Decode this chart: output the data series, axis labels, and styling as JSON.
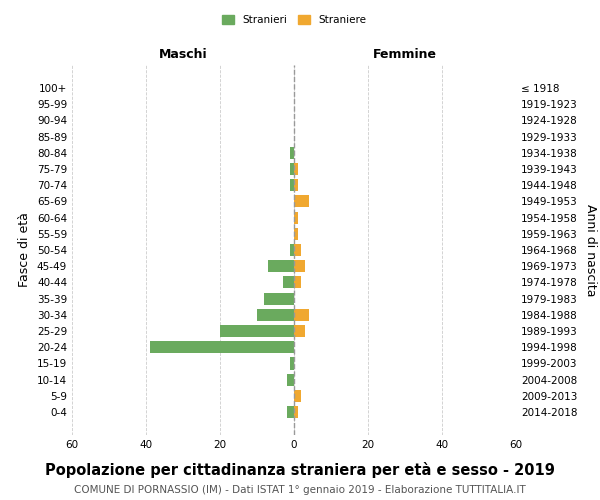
{
  "age_groups": [
    "100+",
    "95-99",
    "90-94",
    "85-89",
    "80-84",
    "75-79",
    "70-74",
    "65-69",
    "60-64",
    "55-59",
    "50-54",
    "45-49",
    "40-44",
    "35-39",
    "30-34",
    "25-29",
    "20-24",
    "15-19",
    "10-14",
    "5-9",
    "0-4"
  ],
  "birth_years": [
    "≤ 1918",
    "1919-1923",
    "1924-1928",
    "1929-1933",
    "1934-1938",
    "1939-1943",
    "1944-1948",
    "1949-1953",
    "1954-1958",
    "1959-1963",
    "1964-1968",
    "1969-1973",
    "1974-1978",
    "1979-1983",
    "1984-1988",
    "1989-1993",
    "1994-1998",
    "1999-2003",
    "2004-2008",
    "2009-2013",
    "2014-2018"
  ],
  "maschi": [
    0,
    0,
    0,
    0,
    1,
    1,
    1,
    0,
    0,
    0,
    1,
    7,
    3,
    8,
    10,
    20,
    39,
    1,
    2,
    0,
    2
  ],
  "femmine": [
    0,
    0,
    0,
    0,
    0,
    1,
    1,
    4,
    1,
    1,
    2,
    3,
    2,
    0,
    4,
    3,
    0,
    0,
    0,
    2,
    1
  ],
  "maschi_color": "#6aaa5e",
  "femmine_color": "#f0a830",
  "title": "Popolazione per cittadinanza straniera per età e sesso - 2019",
  "subtitle": "COMUNE DI PORNASSIO (IM) - Dati ISTAT 1° gennaio 2019 - Elaborazione TUTTITALIA.IT",
  "ylabel_left": "Fasce di età",
  "ylabel_right": "Anni di nascita",
  "xlabel_left": "Maschi",
  "xlabel_top_right": "Femmine",
  "legend_maschi": "Stranieri",
  "legend_femmine": "Straniere",
  "xlim": 60,
  "background_color": "#ffffff",
  "grid_color": "#cccccc",
  "center_line_color": "#999999",
  "title_fontsize": 10.5,
  "subtitle_fontsize": 7.5,
  "tick_fontsize": 7.5,
  "label_fontsize": 9
}
